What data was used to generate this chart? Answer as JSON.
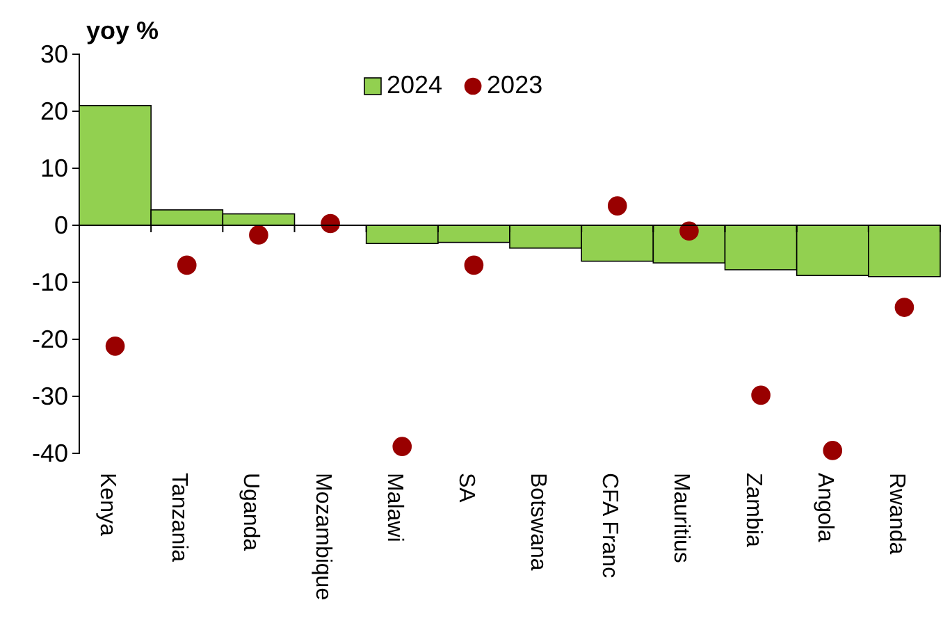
{
  "chart_data": {
    "type": "bar",
    "ylabel": "yoy %",
    "categories": [
      "Kenya",
      "Tanzania",
      "Uganda",
      "Mozambique",
      "Malawi",
      "SA",
      "Botswana",
      "CFA Franc",
      "Mauritius",
      "Zambia",
      "Angola",
      "Rwanda"
    ],
    "series": [
      {
        "name": "2024",
        "color": "#92d050",
        "values": [
          21,
          2.7,
          2,
          0,
          -3.2,
          -3,
          -4,
          -6.3,
          -6.6,
          -7.8,
          -8.8,
          -9
        ]
      },
      {
        "name": "2023",
        "type": "scatter",
        "color": "#990000",
        "values": [
          -21.2,
          -7,
          -1.7,
          0.3,
          -38.8,
          -7,
          null,
          3.4,
          -1,
          -29.8,
          -39.5,
          -14.4
        ]
      }
    ],
    "ylim": [
      -40,
      30
    ],
    "yticks": [
      -40,
      -30,
      -20,
      -10,
      0,
      10,
      20,
      30
    ],
    "legend": "top",
    "marker": "circle"
  }
}
